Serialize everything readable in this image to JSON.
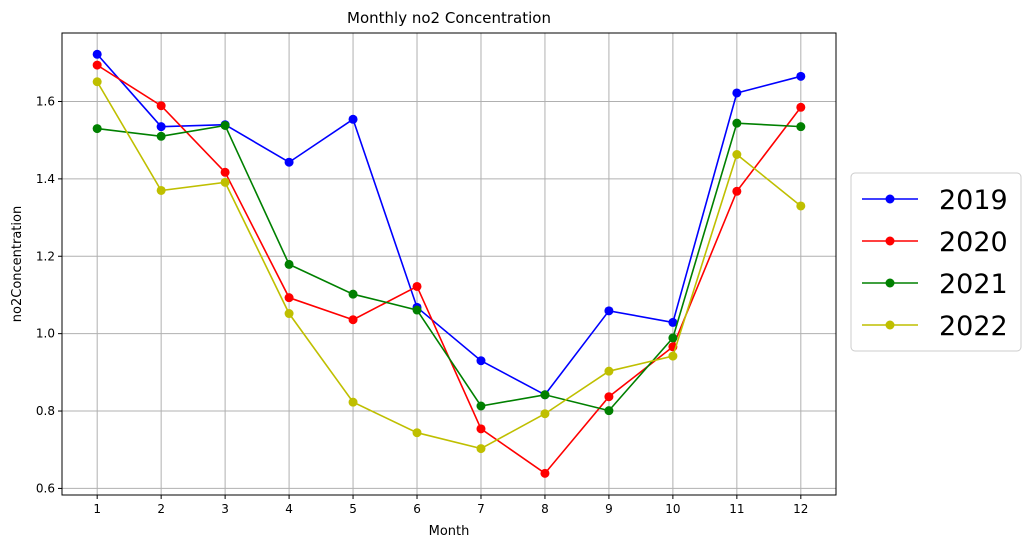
{
  "chart_data": {
    "type": "line",
    "title": "Monthly no2 Concentration",
    "xlabel": "Month",
    "ylabel": "no2Concentration",
    "x": [
      1,
      2,
      3,
      4,
      5,
      6,
      7,
      8,
      9,
      10,
      11,
      12
    ],
    "xlim": [
      0.45,
      12.55
    ],
    "ylim": [
      0.583,
      1.777
    ],
    "yticks": [
      0.6,
      0.8,
      1.0,
      1.2,
      1.4,
      1.6
    ],
    "grid": true,
    "legend_position": "right",
    "series": [
      {
        "name": "2019",
        "color": "#0000ff",
        "values": [
          1.722,
          1.535,
          1.54,
          1.443,
          1.554,
          1.068,
          0.93,
          0.842,
          1.059,
          1.029,
          1.622,
          1.665
        ]
      },
      {
        "name": "2020",
        "color": "#ff0000",
        "values": [
          1.694,
          1.589,
          1.417,
          1.093,
          1.036,
          1.122,
          0.754,
          0.639,
          0.837,
          0.966,
          1.368,
          1.585
        ]
      },
      {
        "name": "2021",
        "color": "#008000",
        "values": [
          1.53,
          1.51,
          1.538,
          1.179,
          1.102,
          1.061,
          0.813,
          0.842,
          0.801,
          0.989,
          1.544,
          1.535
        ]
      },
      {
        "name": "2022",
        "color": "#bfbf00",
        "values": [
          1.651,
          1.37,
          1.391,
          1.052,
          0.823,
          0.744,
          0.703,
          0.793,
          0.903,
          0.942,
          1.463,
          1.33
        ]
      }
    ]
  }
}
